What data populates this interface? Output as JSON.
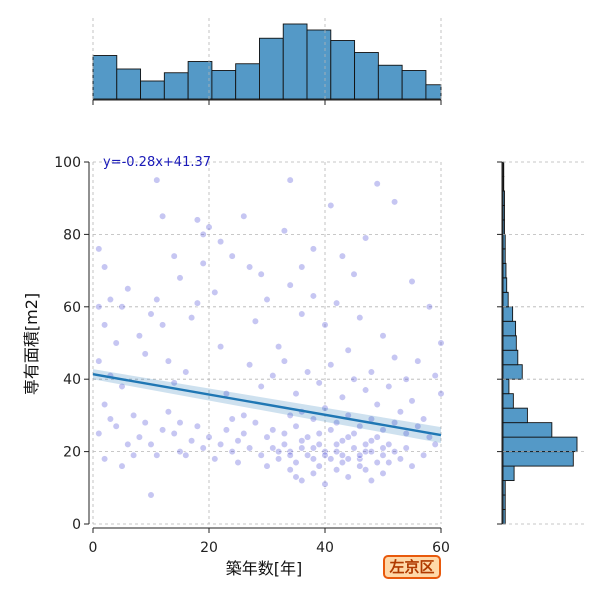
{
  "chart_data": {
    "type": "scatter",
    "xlabel": "築年数[年]",
    "ylabel": "専有面積[m2]",
    "xlim": [
      0,
      60
    ],
    "ylim": [
      0,
      100
    ],
    "xticks": [
      0,
      20,
      40,
      60
    ],
    "yticks": [
      0,
      20,
      40,
      60,
      80,
      100
    ],
    "grid": true,
    "regression": {
      "equation": "y=-0.28x+41.37",
      "slope": -0.28,
      "intercept": 41.37
    },
    "top_histogram": {
      "bin_edges": [
        0,
        4.1,
        8.2,
        12.3,
        16.4,
        20.5,
        24.6,
        28.7,
        32.8,
        36.9,
        41.0,
        45.1,
        49.2,
        53.3,
        57.4,
        60
      ],
      "heights": [
        0.58,
        0.4,
        0.24,
        0.35,
        0.5,
        0.38,
        0.47,
        0.81,
        1.0,
        0.92,
        0.78,
        0.62,
        0.45,
        0.38,
        0.19
      ]
    },
    "right_histogram": {
      "bin_edges": [
        0,
        4,
        8,
        12,
        16,
        20,
        24,
        28,
        32,
        36,
        40,
        44,
        48,
        52,
        56,
        60,
        64,
        68,
        72,
        76,
        80,
        84,
        88,
        92,
        96,
        100
      ],
      "widths": [
        0.03,
        0.03,
        0.03,
        0.15,
        0.95,
        1.0,
        0.66,
        0.33,
        0.14,
        0.08,
        0.26,
        0.2,
        0.18,
        0.17,
        0.13,
        0.07,
        0.05,
        0.04,
        0.03,
        0.03,
        0.02,
        0.02,
        0.02,
        0.01,
        0.01
      ]
    },
    "points": [
      [
        1,
        76
      ],
      [
        2,
        71
      ],
      [
        3,
        62
      ],
      [
        1,
        60
      ],
      [
        2,
        55
      ],
      [
        4,
        50
      ],
      [
        1,
        45
      ],
      [
        3,
        41
      ],
      [
        5,
        38
      ],
      [
        2,
        33
      ],
      [
        1,
        25
      ],
      [
        2,
        18
      ],
      [
        4,
        27
      ],
      [
        6,
        22
      ],
      [
        7,
        30
      ],
      [
        5,
        60
      ],
      [
        6,
        65
      ],
      [
        8,
        52
      ],
      [
        9,
        47
      ],
      [
        10,
        58
      ],
      [
        11,
        62
      ],
      [
        12,
        55
      ],
      [
        13,
        45
      ],
      [
        14,
        39
      ],
      [
        15,
        28
      ],
      [
        8,
        24
      ],
      [
        9,
        28
      ],
      [
        10,
        22
      ],
      [
        11,
        19
      ],
      [
        12,
        26
      ],
      [
        13,
        31
      ],
      [
        14,
        25
      ],
      [
        15,
        20
      ],
      [
        16,
        42
      ],
      [
        17,
        57
      ],
      [
        18,
        61
      ],
      [
        19,
        72
      ],
      [
        20,
        82
      ],
      [
        21,
        64
      ],
      [
        22,
        49
      ],
      [
        23,
        36
      ],
      [
        24,
        29
      ],
      [
        25,
        23
      ],
      [
        26,
        30
      ],
      [
        27,
        44
      ],
      [
        16,
        19
      ],
      [
        17,
        23
      ],
      [
        18,
        27
      ],
      [
        19,
        21
      ],
      [
        20,
        24
      ],
      [
        21,
        18
      ],
      [
        22,
        22
      ],
      [
        23,
        26
      ],
      [
        24,
        20
      ],
      [
        25,
        17
      ],
      [
        26,
        25
      ],
      [
        27,
        21
      ],
      [
        28,
        28
      ],
      [
        29,
        19
      ],
      [
        30,
        24
      ],
      [
        31,
        21
      ],
      [
        32,
        18
      ],
      [
        33,
        22
      ],
      [
        34,
        20
      ],
      [
        35,
        17
      ],
      [
        36,
        23
      ],
      [
        37,
        19
      ],
      [
        38,
        21
      ],
      [
        39,
        25
      ],
      [
        40,
        20
      ],
      [
        41,
        18
      ],
      [
        42,
        22
      ],
      [
        43,
        19
      ],
      [
        44,
        24
      ],
      [
        45,
        21
      ],
      [
        46,
        18
      ],
      [
        47,
        20
      ],
      [
        48,
        23
      ],
      [
        49,
        17
      ],
      [
        50,
        19
      ],
      [
        51,
        22
      ],
      [
        52,
        20
      ],
      [
        53,
        18
      ],
      [
        54,
        21
      ],
      [
        55,
        16
      ],
      [
        31,
        26
      ],
      [
        33,
        25
      ],
      [
        35,
        27
      ],
      [
        37,
        24
      ],
      [
        39,
        22
      ],
      [
        41,
        26
      ],
      [
        43,
        23
      ],
      [
        45,
        25
      ],
      [
        47,
        22
      ],
      [
        49,
        24
      ],
      [
        30,
        16
      ],
      [
        34,
        15
      ],
      [
        38,
        14
      ],
      [
        42,
        15
      ],
      [
        46,
        16
      ],
      [
        50,
        14
      ],
      [
        36,
        12
      ],
      [
        40,
        11
      ],
      [
        44,
        13
      ],
      [
        48,
        12
      ],
      [
        28,
        56
      ],
      [
        30,
        62
      ],
      [
        32,
        49
      ],
      [
        34,
        66
      ],
      [
        36,
        58
      ],
      [
        38,
        63
      ],
      [
        40,
        55
      ],
      [
        42,
        61
      ],
      [
        44,
        48
      ],
      [
        46,
        57
      ],
      [
        48,
        42
      ],
      [
        50,
        52
      ],
      [
        52,
        46
      ],
      [
        54,
        40
      ],
      [
        56,
        45
      ],
      [
        29,
        38
      ],
      [
        31,
        41
      ],
      [
        33,
        45
      ],
      [
        35,
        36
      ],
      [
        37,
        42
      ],
      [
        39,
        39
      ],
      [
        41,
        44
      ],
      [
        43,
        35
      ],
      [
        45,
        40
      ],
      [
        47,
        37
      ],
      [
        49,
        33
      ],
      [
        51,
        38
      ],
      [
        53,
        31
      ],
      [
        55,
        34
      ],
      [
        57,
        29
      ],
      [
        33,
        81
      ],
      [
        34,
        95
      ],
      [
        36,
        71
      ],
      [
        38,
        76
      ],
      [
        41,
        88
      ],
      [
        43,
        74
      ],
      [
        45,
        69
      ],
      [
        47,
        79
      ],
      [
        49,
        94
      ],
      [
        52,
        89
      ],
      [
        55,
        67
      ],
      [
        58,
        60
      ],
      [
        59,
        41
      ],
      [
        60,
        50
      ],
      [
        60,
        36
      ],
      [
        3,
        29
      ],
      [
        5,
        16
      ],
      [
        7,
        19
      ],
      [
        10,
        8
      ],
      [
        11,
        95
      ],
      [
        12,
        85
      ],
      [
        14,
        74
      ],
      [
        15,
        68
      ],
      [
        18,
        84
      ],
      [
        19,
        80
      ],
      [
        22,
        78
      ],
      [
        24,
        74
      ],
      [
        26,
        85
      ],
      [
        27,
        71
      ],
      [
        29,
        69
      ],
      [
        34,
        30
      ],
      [
        36,
        31
      ],
      [
        38,
        29
      ],
      [
        40,
        32
      ],
      [
        42,
        28
      ],
      [
        44,
        30
      ],
      [
        46,
        27
      ],
      [
        48,
        29
      ],
      [
        50,
        26
      ],
      [
        52,
        28
      ],
      [
        54,
        25
      ],
      [
        56,
        27
      ],
      [
        58,
        24
      ],
      [
        59,
        22
      ],
      [
        57,
        19
      ],
      [
        32,
        20
      ],
      [
        34,
        19
      ],
      [
        36,
        21
      ],
      [
        38,
        18
      ],
      [
        40,
        19
      ],
      [
        42,
        20
      ],
      [
        44,
        18
      ],
      [
        46,
        19
      ],
      [
        48,
        20
      ],
      [
        50,
        21
      ],
      [
        35,
        13
      ],
      [
        39,
        16
      ],
      [
        43,
        17
      ],
      [
        47,
        15
      ],
      [
        51,
        17
      ]
    ]
  },
  "badge": {
    "label": "左京区"
  }
}
